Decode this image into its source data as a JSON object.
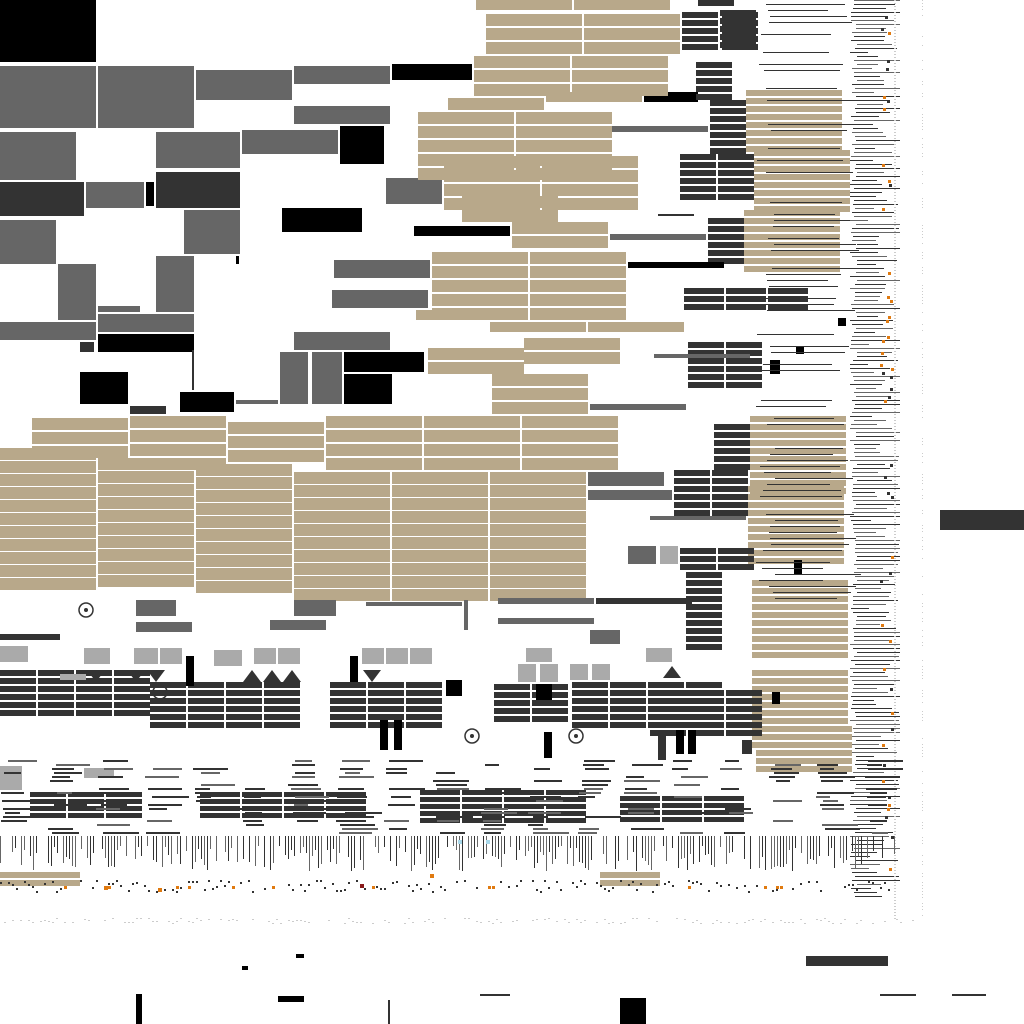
{
  "canvas": {
    "background": "#ffffff"
  },
  "palette": {
    "tan": "#b8a88a",
    "dark": "#333333",
    "black": "#000000",
    "mid_gray": "#666666",
    "light_gray": "#aaaaaa",
    "faint_gray": "#cccccc",
    "orange": "#e07a10",
    "red": "#8a1a1a",
    "light_blue": "#a8d8ea"
  },
  "icons": {
    "marker": "target-circle-icon",
    "down_triangle": "triangle-down-icon",
    "up_triangle": "triangle-up-icon"
  }
}
